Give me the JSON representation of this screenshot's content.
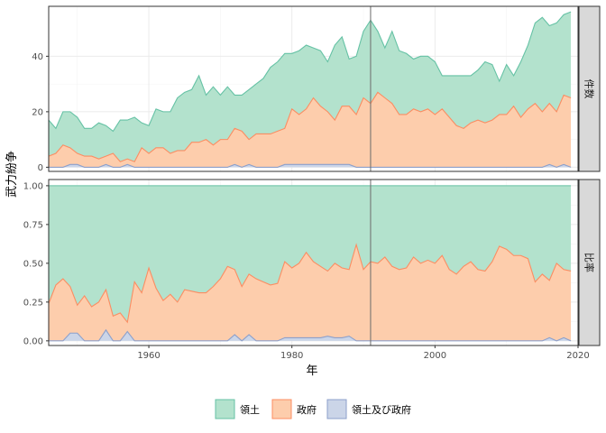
{
  "chart_data": {
    "type": "area",
    "xlabel": "年",
    "ylabel": "武力紛争",
    "x_range": [
      1946,
      2020
    ],
    "x_ticks": [
      1960,
      1980,
      2000,
      2020
    ],
    "vertical_line_x": 1991,
    "grid": true,
    "legend_position": "bottom",
    "colors": {
      "territory_fill": "#b3e2cd",
      "territory_line": "#66c2a5",
      "government_fill": "#fdcdac",
      "government_line": "#fc8d62",
      "both_fill": "#cbd5e8",
      "both_line": "#8da0cb"
    },
    "legend": [
      {
        "key": "territory",
        "label": "領土"
      },
      {
        "key": "government",
        "label": "政府"
      },
      {
        "key": "both",
        "label": "領土及び政府"
      }
    ],
    "panels": [
      {
        "key": "count",
        "strip": "件数",
        "ylim": [
          -1.5,
          58
        ],
        "y_ticks": [
          0,
          20,
          40
        ],
        "y_tick_labels": [
          "0",
          "20",
          "40"
        ],
        "series_x_start": 1946,
        "stacked_totals": {
          "total": [
            17,
            14,
            20,
            20,
            18,
            14,
            14,
            16,
            15,
            13,
            17,
            17,
            18,
            16,
            15,
            21,
            20,
            20,
            25,
            27,
            28,
            33,
            26,
            29,
            26,
            29,
            26,
            26,
            28,
            30,
            32,
            36,
            38,
            41,
            41,
            42,
            44,
            43,
            42,
            38,
            44,
            47,
            39,
            40,
            49,
            53,
            49,
            43,
            49,
            42,
            41,
            39,
            40,
            40,
            38,
            33,
            33,
            33,
            33,
            33,
            35,
            38,
            37,
            31,
            37,
            33,
            38,
            44,
            52,
            54,
            51,
            52,
            55,
            56
          ],
          "government_plus_both": [
            4,
            5,
            8,
            7,
            5,
            4,
            4,
            3,
            4,
            5,
            2,
            3,
            2,
            7,
            5,
            7,
            7,
            5,
            6,
            6,
            9,
            9,
            10,
            8,
            10,
            10,
            14,
            13,
            10,
            12,
            12,
            12,
            13,
            14,
            21,
            19,
            21,
            25,
            22,
            20,
            17,
            22,
            22,
            19,
            25,
            23,
            27,
            25,
            23,
            19,
            19,
            21,
            20,
            21,
            19,
            21,
            18,
            15,
            14,
            16,
            17,
            16,
            17,
            19,
            19,
            22,
            18,
            21,
            23,
            20,
            23,
            20,
            26,
            25
          ],
          "both": [
            0,
            0,
            0,
            1,
            1,
            0,
            0,
            0,
            1,
            0,
            0,
            1,
            0,
            0,
            0,
            0,
            0,
            0,
            0,
            0,
            0,
            0,
            0,
            0,
            0,
            0,
            1,
            0,
            1,
            0,
            0,
            0,
            0,
            1,
            1,
            1,
            1,
            1,
            1,
            1,
            1,
            1,
            1,
            0,
            0,
            0,
            0,
            0,
            0,
            0,
            0,
            0,
            0,
            0,
            0,
            0,
            0,
            0,
            0,
            0,
            0,
            0,
            0,
            0,
            0,
            0,
            0,
            0,
            0,
            0,
            1,
            0,
            1,
            0
          ]
        }
      },
      {
        "key": "ratio",
        "strip": "比率",
        "ylim": [
          -0.03,
          1.04
        ],
        "y_ticks": [
          0,
          0.25,
          0.5,
          0.75,
          1.0
        ],
        "y_tick_labels": [
          "0.00",
          "0.25",
          "0.50",
          "0.75",
          "1.00"
        ],
        "series_x_start": 1946,
        "stacked_totals": {
          "total": [
            1,
            1,
            1,
            1,
            1,
            1,
            1,
            1,
            1,
            1,
            1,
            1,
            1,
            1,
            1,
            1,
            1,
            1,
            1,
            1,
            1,
            1,
            1,
            1,
            1,
            1,
            1,
            1,
            1,
            1,
            1,
            1,
            1,
            1,
            1,
            1,
            1,
            1,
            1,
            1,
            1,
            1,
            1,
            1,
            1,
            1,
            1,
            1,
            1,
            1,
            1,
            1,
            1,
            1,
            1,
            1,
            1,
            1,
            1,
            1,
            1,
            1,
            1,
            1,
            1,
            1,
            1,
            1,
            1,
            1,
            1,
            1,
            1,
            1
          ],
          "government_plus_both": [
            0.24,
            0.36,
            0.4,
            0.35,
            0.23,
            0.29,
            0.22,
            0.25,
            0.33,
            0.16,
            0.18,
            0.12,
            0.38,
            0.31,
            0.47,
            0.34,
            0.26,
            0.3,
            0.25,
            0.33,
            0.32,
            0.31,
            0.31,
            0.35,
            0.4,
            0.48,
            0.46,
            0.35,
            0.43,
            0.4,
            0.38,
            0.36,
            0.37,
            0.51,
            0.47,
            0.5,
            0.57,
            0.51,
            0.48,
            0.45,
            0.5,
            0.47,
            0.46,
            0.62,
            0.46,
            0.51,
            0.5,
            0.54,
            0.48,
            0.46,
            0.47,
            0.54,
            0.5,
            0.52,
            0.5,
            0.55,
            0.46,
            0.43,
            0.48,
            0.51,
            0.46,
            0.45,
            0.51,
            0.61,
            0.59,
            0.55,
            0.55,
            0.53,
            0.38,
            0.43,
            0.39,
            0.5,
            0.46,
            0.45
          ],
          "both": [
            0,
            0,
            0,
            0.05,
            0.05,
            0,
            0,
            0,
            0.07,
            0,
            0,
            0.06,
            0,
            0,
            0,
            0,
            0,
            0,
            0,
            0,
            0,
            0,
            0,
            0,
            0,
            0,
            0.04,
            0,
            0.04,
            0,
            0,
            0,
            0,
            0.02,
            0.02,
            0.02,
            0.02,
            0.02,
            0.02,
            0.03,
            0.02,
            0.02,
            0.03,
            0,
            0,
            0,
            0,
            0,
            0,
            0,
            0,
            0,
            0,
            0,
            0,
            0,
            0,
            0,
            0,
            0,
            0,
            0,
            0,
            0,
            0,
            0,
            0,
            0,
            0,
            0,
            0.02,
            0,
            0.02,
            0
          ]
        }
      }
    ]
  }
}
